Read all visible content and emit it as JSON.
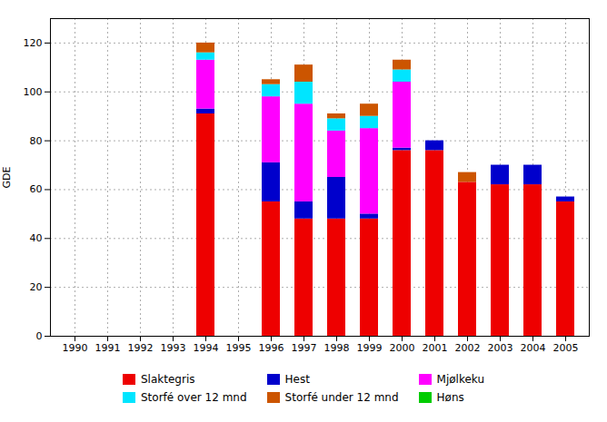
{
  "chart_data": {
    "type": "bar",
    "stacked": true,
    "categories": [
      "1990",
      "1991",
      "1992",
      "1993",
      "1994",
      "1995",
      "1996",
      "1997",
      "1998",
      "1999",
      "2000",
      "2001",
      "2002",
      "2003",
      "2004",
      "2005"
    ],
    "series": [
      {
        "name": "Slaktegris",
        "color": "#ee0000",
        "values": [
          0,
          0,
          0,
          0,
          91,
          0,
          55,
          48,
          48,
          48,
          76,
          76,
          63,
          62,
          62,
          55
        ]
      },
      {
        "name": "Hest",
        "color": "#0000cc",
        "values": [
          0,
          0,
          0,
          0,
          2,
          0,
          16,
          7,
          17,
          2,
          1,
          4,
          0,
          8,
          8,
          2
        ]
      },
      {
        "name": "Mjølkeku",
        "color": "#ff00ff",
        "values": [
          0,
          0,
          0,
          0,
          20,
          0,
          27,
          40,
          19,
          35,
          27,
          0,
          0,
          0,
          0,
          0
        ]
      },
      {
        "name": "Storfé over 12 mnd",
        "color": "#00e5ff",
        "values": [
          0,
          0,
          0,
          0,
          3,
          0,
          5,
          9,
          5,
          5,
          5,
          0,
          0,
          0,
          0,
          0
        ]
      },
      {
        "name": "Storfé under 12 mnd",
        "color": "#cc5500",
        "values": [
          0,
          0,
          0,
          0,
          4,
          0,
          2,
          7,
          2,
          5,
          4,
          0,
          4,
          0,
          0,
          0
        ]
      },
      {
        "name": "Høns",
        "color": "#00cc00",
        "values": [
          0,
          0,
          0,
          0,
          0,
          0,
          0,
          0,
          0,
          0,
          0,
          0,
          0,
          0,
          0,
          0
        ]
      }
    ],
    "ylabel": "GDE",
    "ylim": [
      0,
      130
    ],
    "yticks": [
      0,
      20,
      40,
      60,
      80,
      100,
      120
    ],
    "grid": true,
    "legend": "bottom"
  }
}
